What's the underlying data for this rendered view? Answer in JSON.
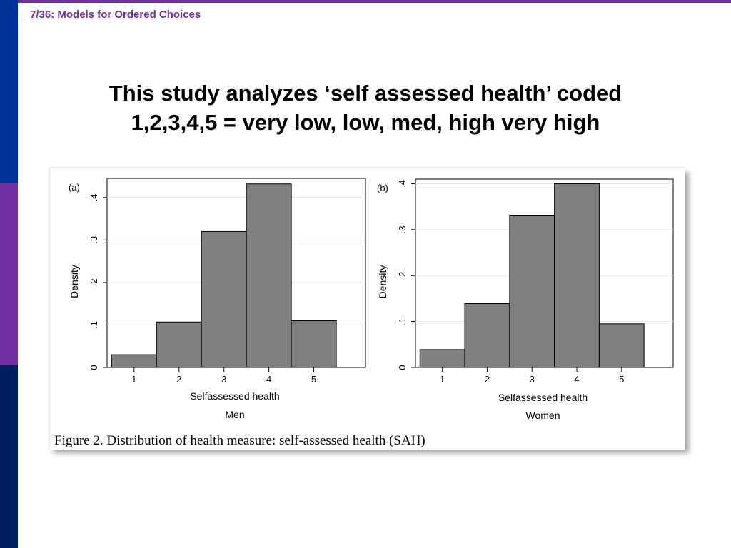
{
  "slide": {
    "number": "7/36:",
    "section": "Models for Ordered Choices",
    "title_line1": "This study analyzes ‘self assessed health’ coded",
    "title_line2": "1,2,3,4,5 = very low, low, med, high very high"
  },
  "colors": {
    "accent_purple": "#7030a0",
    "accent_blue": "#003399",
    "accent_navy": "#002060",
    "bar_fill": "#808080"
  },
  "figure": {
    "caption": "Figure 2. Distribution of health measure: self-assessed health (SAH)"
  },
  "chart_data": [
    {
      "type": "bar",
      "panel_label": "(a)",
      "categories": [
        "1",
        "2",
        "3",
        "4",
        "5"
      ],
      "values": [
        0.03,
        0.107,
        0.32,
        0.432,
        0.11
      ],
      "xlabel": "Selfassessed health",
      "ylabel": "Density",
      "subtitle": "Men",
      "yticks": [
        "0",
        ".1",
        ".2",
        ".3",
        ".4"
      ],
      "ytick_values": [
        0,
        0.1,
        0.2,
        0.3,
        0.4
      ],
      "ylim": [
        0,
        0.445
      ],
      "grid": true
    },
    {
      "type": "bar",
      "panel_label": "(b)",
      "categories": [
        "1",
        "2",
        "3",
        "4",
        "5"
      ],
      "values": [
        0.039,
        0.139,
        0.33,
        0.4,
        0.095
      ],
      "xlabel": "Selfassessed health",
      "ylabel": "Density",
      "subtitle": "Women",
      "yticks": [
        "0",
        ".1",
        ".2",
        ".3",
        ".4"
      ],
      "ytick_values": [
        0,
        0.1,
        0.2,
        0.3,
        0.4
      ],
      "ylim": [
        0,
        0.41
      ],
      "grid": true
    }
  ]
}
